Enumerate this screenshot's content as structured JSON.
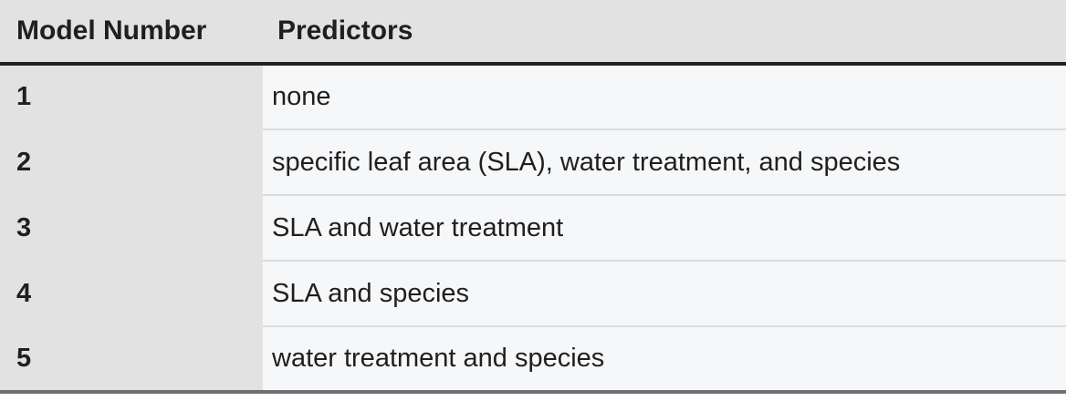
{
  "table": {
    "headers": {
      "model_number": "Model Number",
      "predictors": "Predictors"
    },
    "rows": [
      {
        "model_number": "1",
        "predictors": "none"
      },
      {
        "model_number": "2",
        "predictors": "specific leaf area (SLA), water treatment, and species"
      },
      {
        "model_number": "3",
        "predictors": "SLA and water treatment"
      },
      {
        "model_number": "4",
        "predictors": "SLA and species"
      },
      {
        "model_number": "5",
        "predictors": "water treatment and species"
      }
    ]
  },
  "colors": {
    "header_bg": "#e2e2e2",
    "first_column_bg": "#e2e2e2",
    "cell_bg": "#f6f7f9",
    "rule_dark": "#222222"
  }
}
